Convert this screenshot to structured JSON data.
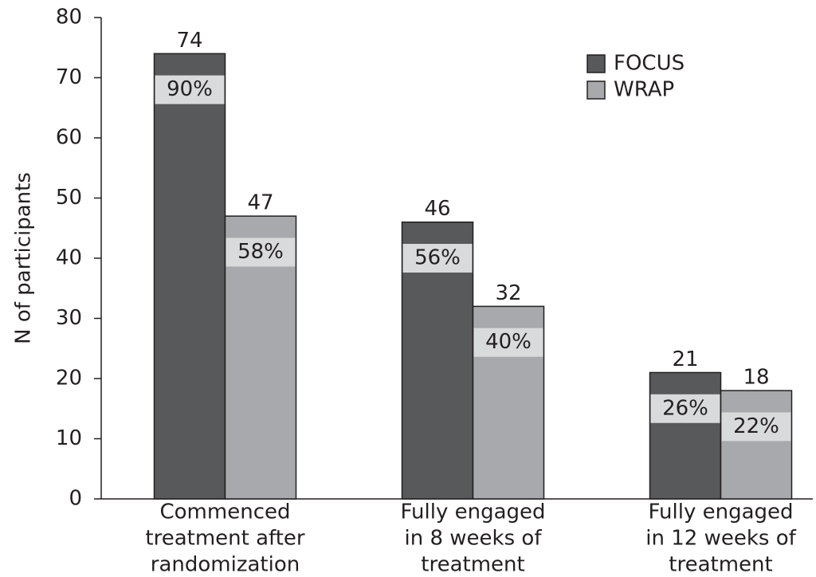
{
  "chart_data": {
    "type": "bar",
    "y_label": "N of participants",
    "categories": [
      [
        "Commenced",
        "treatment after",
        "randomization"
      ],
      [
        "Fully engaged",
        "in 8 weeks of",
        "treatment"
      ],
      [
        "Fully engaged",
        "in 12 weeks of",
        "treatment"
      ]
    ],
    "series": [
      {
        "name": "FOCUS",
        "color": "#58595b",
        "values": [
          74,
          46,
          21
        ],
        "percentages": [
          90,
          56,
          26
        ],
        "percentage_labels": [
          "90%",
          "56%",
          "26%"
        ]
      },
      {
        "name": "WRAP",
        "color": "#a7a9ac",
        "values": [
          47,
          32,
          18
        ],
        "percentages": [
          58,
          40,
          22
        ],
        "percentage_labels": [
          "58%",
          "40%",
          "22%"
        ]
      }
    ],
    "ylim": [
      0,
      80
    ],
    "yticks": [
      0,
      10,
      20,
      30,
      40,
      50,
      60,
      70,
      80
    ],
    "legend": "upper right"
  }
}
